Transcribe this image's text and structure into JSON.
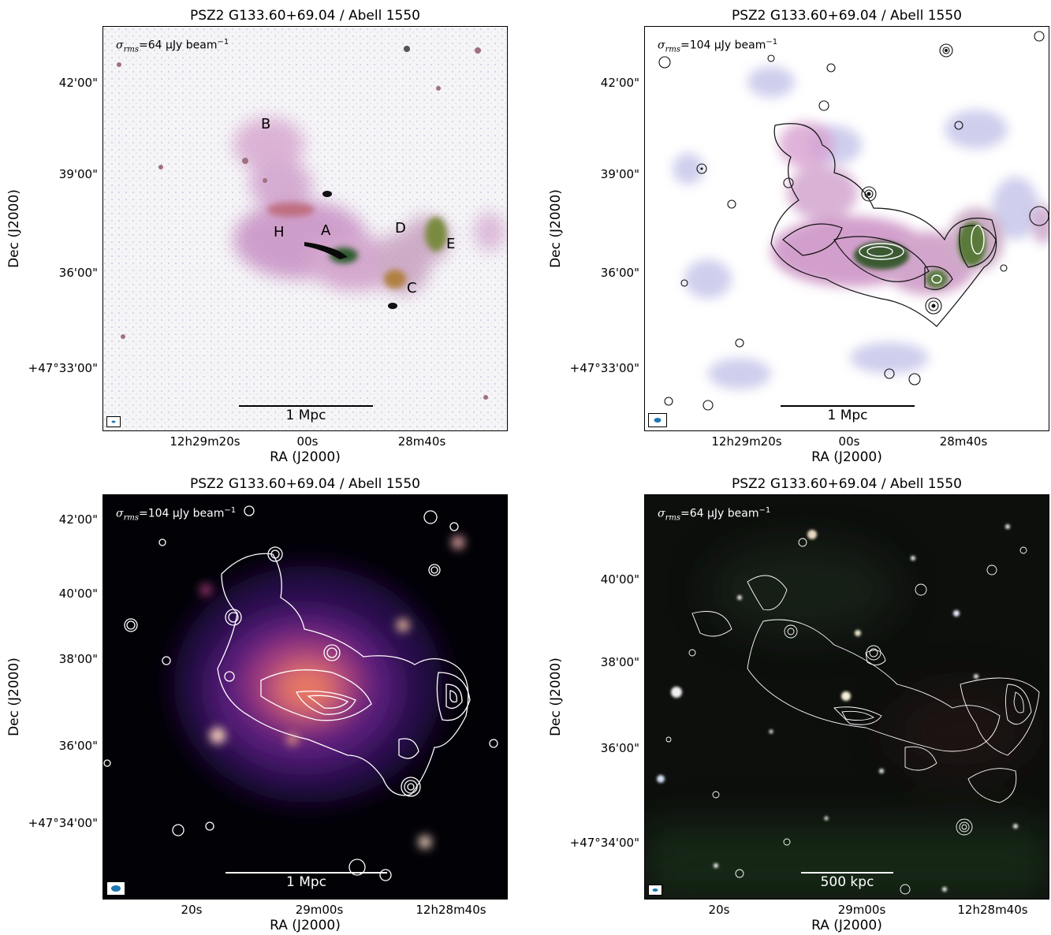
{
  "panels": [
    {
      "title": "PSZ2 G133.60+69.04 / Abell 1550",
      "sigma": {
        "var": "σ",
        "sub": "rms",
        "rest": "=64 μJy beam",
        "sup": "−1"
      },
      "yticks": [
        "42'00\"",
        "39'00\"",
        "36'00\"",
        "+47°33'00\""
      ],
      "xticks": [
        "12h29m20s",
        "00s",
        "28m40s"
      ],
      "xlabel": "RA (J2000)",
      "ylabel": "Dec (J2000)",
      "scalebar": "1 Mpc",
      "regions": [
        "A",
        "B",
        "C",
        "D",
        "E",
        "H"
      ]
    },
    {
      "title": "PSZ2 G133.60+69.04 / Abell 1550",
      "sigma": {
        "var": "σ",
        "sub": "rms",
        "rest": "=104 μJy beam",
        "sup": "−1"
      },
      "yticks": [
        "42'00\"",
        "39'00\"",
        "36'00\"",
        "+47°33'00\""
      ],
      "xticks": [
        "12h29m20s",
        "00s",
        "28m40s"
      ],
      "xlabel": "RA (J2000)",
      "ylabel": "Dec (J2000)",
      "scalebar": "1 Mpc"
    },
    {
      "title": "PSZ2 G133.60+69.04 / Abell 1550",
      "sigma": {
        "var": "σ",
        "sub": "rms",
        "rest": "=104 μJy beam",
        "sup": "−1"
      },
      "yticks": [
        "42'00\"",
        "40'00\"",
        "38'00\"",
        "36'00\"",
        "+47°34'00\""
      ],
      "xticks": [
        "20s",
        "29m00s",
        "12h28m40s"
      ],
      "xlabel": "RA (J2000)",
      "ylabel": "Dec (J2000)",
      "scalebar": "1 Mpc"
    },
    {
      "title": "PSZ2 G133.60+69.04 / Abell 1550",
      "sigma": {
        "var": "σ",
        "sub": "rms",
        "rest": "=64 μJy beam",
        "sup": "−1"
      },
      "yticks": [
        "40'00\"",
        "38'00\"",
        "36'00\"",
        "+47°34'00\""
      ],
      "xticks": [
        "20s",
        "29m00s",
        "12h28m40s"
      ],
      "xlabel": "RA (J2000)",
      "ylabel": "Dec (J2000)",
      "scalebar": "500 kpc"
    }
  ],
  "colors": {
    "beam": "#1f77b4",
    "radio_magenta": "#c080b0",
    "radio_green": "#3a6b3a",
    "xray_dark": "#000000",
    "xray_glow": "#f08060"
  }
}
